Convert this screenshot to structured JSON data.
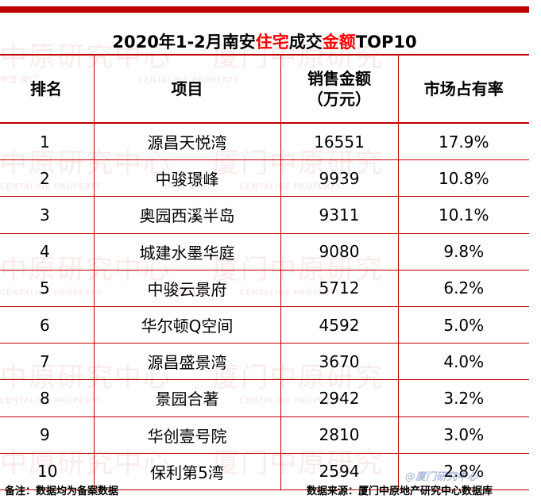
{
  "title": {
    "part1": "2020年1-2月南安",
    "part2": "住宅",
    "part3": "成交",
    "part4": "金额",
    "part5": "TOP10"
  },
  "table": {
    "headers": [
      "排名",
      "项目",
      "销售金额\n（万元）",
      "市场占有率"
    ],
    "rows": [
      {
        "rank": "1",
        "project": "源昌天悦湾",
        "amount": "16551",
        "share": "17.9%"
      },
      {
        "rank": "2",
        "project": "中骏璟峰",
        "amount": "9939",
        "share": "10.8%"
      },
      {
        "rank": "3",
        "project": "奥园西溪半岛",
        "amount": "9311",
        "share": "10.1%"
      },
      {
        "rank": "4",
        "project": "城建水墨华庭",
        "amount": "9080",
        "share": "9.8%"
      },
      {
        "rank": "5",
        "project": "中骏云景府",
        "amount": "5712",
        "share": "6.2%"
      },
      {
        "rank": "6",
        "project": "华尔顿Q空间",
        "amount": "4592",
        "share": "5.0%"
      },
      {
        "rank": "7",
        "project": "源昌盛景湾",
        "amount": "3670",
        "share": "4.0%"
      },
      {
        "rank": "8",
        "project": "景园合著",
        "amount": "2942",
        "share": "3.2%"
      },
      {
        "rank": "9",
        "project": "华创壹号院",
        "amount": "2810",
        "share": "3.0%"
      },
      {
        "rank": "10",
        "project": "保利第5湾",
        "amount": "2594",
        "share": "2.8%"
      }
    ]
  },
  "footer": {
    "note": "备注：数据均为备案数据",
    "source": "数据来源：厦门中原地产研究中心数据库",
    "watermark": "@厦门研究中心"
  },
  "watermark": {
    "text1": "中原研究中心",
    "text2": "厦门中原研究",
    "text3": "CENTALINE PROPERTY",
    "text4": "中国·厦门"
  },
  "colors": {
    "accent": "#c00000",
    "highlight": "#ff0000"
  }
}
